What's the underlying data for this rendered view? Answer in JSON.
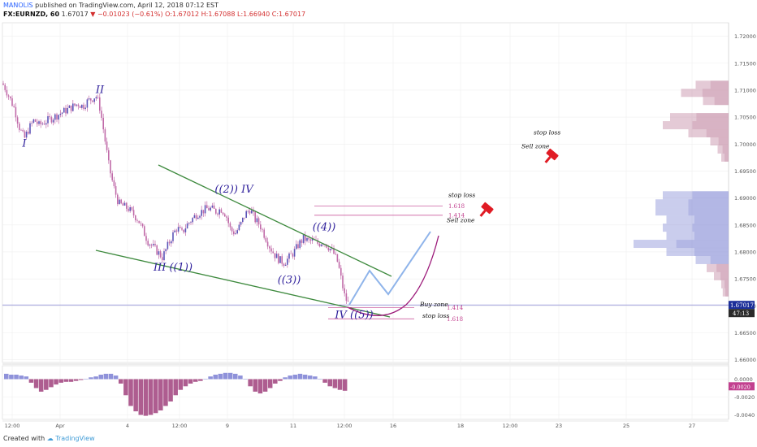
{
  "header": {
    "author": "MANOLIS",
    "published": "published on TradingView.com, April 12, 2018 07:12 EST",
    "symbol": "FX:EURNZD, 60",
    "last": "1.67017",
    "change": "−0.01023 (−0.61%)",
    "ohlc": "O:1.67012 H:1.67088 L:1.66940 C:1.67017"
  },
  "footer": {
    "created_with": "Created with",
    "brand": "TradingView"
  },
  "colors": {
    "candle": "#c06aa8",
    "wedge_line": "#3e8a3e",
    "projection_blue": "#8fb4ea",
    "projection_purple": "#9c1a7a",
    "wave_label": "#2e1f9b",
    "fib_line": "#c2408f",
    "price_line": "#6b6bc8",
    "last_badge": "#1c2f9a",
    "marker": "#e01b24"
  },
  "chart_data": {
    "type": "candlestick",
    "symbol": "FX:EURNZD",
    "interval": "60",
    "y_axis_ticks": [
      "1.72000",
      "1.71500",
      "1.71000",
      "1.70500",
      "1.70000",
      "1.69500",
      "1.69000",
      "1.68500",
      "1.68000",
      "1.67500",
      "1.67000",
      "1.66500",
      "1.66000"
    ],
    "ylim": [
      1.6595,
      1.7225
    ],
    "x_axis_ticks": [
      "12:00",
      "Apr",
      "4",
      "12:00",
      "9",
      "11",
      "12:00",
      "16",
      "18",
      "12:00",
      "23",
      "25",
      "27"
    ],
    "last_price_label": "1.67017",
    "countdown_label": "47:13",
    "last_price": 1.67017,
    "price_path": [
      [
        0,
        1.712
      ],
      [
        6,
        1.7105
      ],
      [
        12,
        1.7085
      ],
      [
        18,
        1.7065
      ],
      [
        24,
        1.703
      ],
      [
        30,
        1.701
      ],
      [
        36,
        1.703
      ],
      [
        42,
        1.7045
      ],
      [
        48,
        1.7035
      ],
      [
        54,
        1.704
      ],
      [
        60,
        1.7045
      ],
      [
        66,
        1.705
      ],
      [
        72,
        1.7055
      ],
      [
        78,
        1.706
      ],
      [
        84,
        1.7065
      ],
      [
        90,
        1.707
      ],
      [
        96,
        1.7075
      ],
      [
        102,
        1.707
      ],
      [
        108,
        1.708
      ],
      [
        114,
        1.7085
      ],
      [
        118,
        1.709
      ],
      [
        122,
        1.7075
      ],
      [
        126,
        1.704
      ],
      [
        130,
        1.7
      ],
      [
        134,
        1.696
      ],
      [
        140,
        1.692
      ],
      [
        146,
        1.689
      ],
      [
        152,
        1.6885
      ],
      [
        158,
        1.688
      ],
      [
        164,
        1.687
      ],
      [
        170,
        1.686
      ],
      [
        176,
        1.684
      ],
      [
        182,
        1.682
      ],
      [
        188,
        1.681
      ],
      [
        194,
        1.68
      ],
      [
        200,
        1.679
      ],
      [
        206,
        1.681
      ],
      [
        212,
        1.683
      ],
      [
        218,
        1.6845
      ],
      [
        224,
        1.6835
      ],
      [
        230,
        1.685
      ],
      [
        236,
        1.686
      ],
      [
        242,
        1.687
      ],
      [
        248,
        1.6875
      ],
      [
        254,
        1.688
      ],
      [
        260,
        1.688
      ],
      [
        266,
        1.6875
      ],
      [
        272,
        1.688
      ],
      [
        278,
        1.687
      ],
      [
        284,
        1.684
      ],
      [
        290,
        1.6835
      ],
      [
        296,
        1.685
      ],
      [
        302,
        1.687
      ],
      [
        308,
        1.688
      ],
      [
        314,
        1.686
      ],
      [
        320,
        1.685
      ],
      [
        326,
        1.683
      ],
      [
        332,
        1.681
      ],
      [
        338,
        1.6795
      ],
      [
        344,
        1.6785
      ],
      [
        350,
        1.678
      ],
      [
        356,
        1.679
      ],
      [
        362,
        1.68
      ],
      [
        368,
        1.6815
      ],
      [
        374,
        1.6825
      ],
      [
        380,
        1.682
      ],
      [
        386,
        1.682
      ],
      [
        392,
        1.6815
      ],
      [
        398,
        1.682
      ],
      [
        404,
        1.681
      ],
      [
        410,
        1.68
      ],
      [
        416,
        1.678
      ],
      [
        420,
        1.675
      ],
      [
        424,
        1.672
      ],
      [
        428,
        1.6705
      ],
      [
        432,
        1.6702
      ]
    ],
    "oscillator": {
      "ylim": [
        -0.0045,
        0.0015
      ],
      "ticks": [
        "0.0000",
        "-0.0020",
        "-0.0040"
      ],
      "values": [
        0.0006,
        0.0005,
        0.0005,
        0.0004,
        0.0003,
        -0.0004,
        -0.001,
        -0.0014,
        -0.0012,
        -0.0009,
        -0.0006,
        -0.0004,
        -0.0003,
        -0.0003,
        -0.0002,
        -0.0001,
        0.0,
        0.0002,
        0.0003,
        0.0005,
        0.0006,
        0.0006,
        0.0004,
        -0.0005,
        -0.0018,
        -0.003,
        -0.0036,
        -0.004,
        -0.0041,
        -0.004,
        -0.0038,
        -0.0035,
        -0.003,
        -0.0025,
        -0.0018,
        -0.0012,
        -0.0008,
        -0.0005,
        -0.0003,
        -0.0002,
        0.0,
        0.0003,
        0.0005,
        0.0006,
        0.0007,
        0.0007,
        0.0006,
        0.0004,
        0.0,
        -0.0008,
        -0.0014,
        -0.0016,
        -0.0014,
        -0.001,
        -0.0005,
        -0.0002,
        0.0002,
        0.0004,
        0.0005,
        0.0006,
        0.0005,
        0.0004,
        0.0003,
        0.0,
        -0.0004,
        -0.0008,
        -0.001,
        -0.0012,
        -0.0013
      ],
      "last_bar_label": "-0.0020"
    },
    "volume_profile": [
      {
        "price": 1.711,
        "size": 0.45,
        "up": false
      },
      {
        "price": 1.7095,
        "size": 0.65,
        "up": false
      },
      {
        "price": 1.708,
        "size": 0.35,
        "up": false
      },
      {
        "price": 1.705,
        "size": 0.8,
        "up": false
      },
      {
        "price": 1.7035,
        "size": 0.9,
        "up": false
      },
      {
        "price": 1.702,
        "size": 0.55,
        "up": false
      },
      {
        "price": 1.7005,
        "size": 0.25,
        "up": false
      },
      {
        "price": 1.699,
        "size": 0.15,
        "up": false
      },
      {
        "price": 1.6975,
        "size": 0.1,
        "up": false
      },
      {
        "price": 1.6905,
        "size": 0.9,
        "up": true
      },
      {
        "price": 1.689,
        "size": 1.0,
        "up": true
      },
      {
        "price": 1.6875,
        "size": 1.0,
        "up": true
      },
      {
        "price": 1.686,
        "size": 0.85,
        "up": true
      },
      {
        "price": 1.6845,
        "size": 0.9,
        "up": true
      },
      {
        "price": 1.683,
        "size": 0.85,
        "up": true
      },
      {
        "price": 1.6815,
        "size": 1.3,
        "up": true
      },
      {
        "price": 1.68,
        "size": 0.85,
        "up": true
      },
      {
        "price": 1.6785,
        "size": 0.45,
        "up": true
      },
      {
        "price": 1.677,
        "size": 0.3,
        "up": false
      },
      {
        "price": 1.6755,
        "size": 0.2,
        "up": false
      },
      {
        "price": 1.674,
        "size": 0.1,
        "up": false
      },
      {
        "price": 1.6725,
        "size": 0.08,
        "up": false
      }
    ],
    "annotations": {
      "waves": [
        {
          "text": "I",
          "x": 30,
          "price": 1.6995
        },
        {
          "text": "II",
          "x": 123,
          "price": 1.7095
        },
        {
          "text": "III ((1))",
          "x": 213,
          "price": 1.6765
        },
        {
          "text": "((2)) IV",
          "x": 288,
          "price": 1.691
        },
        {
          "text": "((3))",
          "x": 356,
          "price": 1.6742
        },
        {
          "text": "((4))",
          "x": 399,
          "price": 1.684
        },
        {
          "text": "IV ((5))",
          "x": 436,
          "price": 1.6677
        }
      ],
      "fib_lines": [
        {
          "label": "1.618",
          "price": 1.6885,
          "x1": 387,
          "x2": 545
        },
        {
          "label": "1.414",
          "price": 1.6868,
          "x1": 387,
          "x2": 545
        },
        {
          "label": "1.414",
          "price": 1.6697,
          "x1": 404,
          "x2": 510
        },
        {
          "label": "1.618",
          "price": 1.6676,
          "x1": 404,
          "x2": 510
        }
      ],
      "texts": [
        {
          "text": "stop loss",
          "x": 552,
          "price": 1.6902
        },
        {
          "text": "Sell zone",
          "x": 550,
          "price": 1.6855
        },
        {
          "text": "Buy zone",
          "x": 517,
          "price": 1.6699
        },
        {
          "text": "stop loss",
          "x": 520,
          "price": 1.6678
        },
        {
          "text": "stop loss",
          "x": 657,
          "price": 1.7018
        },
        {
          "text": "Sell zone",
          "x": 642,
          "price": 1.6992
        }
      ]
    }
  }
}
